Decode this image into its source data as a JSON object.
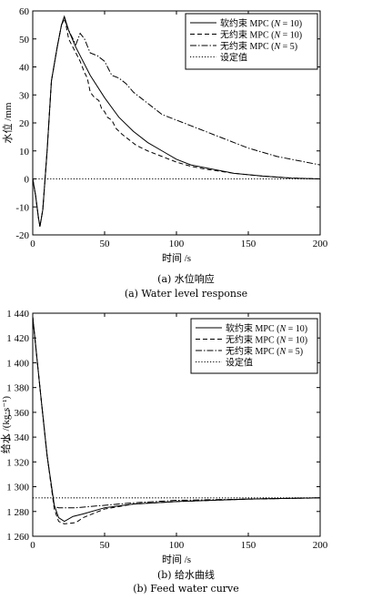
{
  "chart_data": [
    {
      "type": "line",
      "caption_cn": "(a) 水位响应",
      "caption_en": "(a) Water level response",
      "xlabel": "时间 /s",
      "ylabel": "水位 /mm",
      "xlim": [
        0,
        200
      ],
      "ylim": [
        -20,
        60
      ],
      "xticks": [
        0,
        50,
        100,
        150,
        200
      ],
      "yticks": [
        -20,
        -10,
        0,
        10,
        20,
        30,
        40,
        50,
        60
      ],
      "ytick_labels": [
        "-20",
        "-10",
        "0",
        "10",
        "20",
        "30",
        "40",
        "50",
        "60"
      ],
      "grid": false,
      "legend_position": "top-right",
      "series": [
        {
          "name": "软约束 MPC (N = 10)",
          "label_cn": "软约束",
          "label_n": "10",
          "dash": "solid",
          "points": [
            [
              0,
              0
            ],
            [
              2,
              -6
            ],
            [
              4,
              -14
            ],
            [
              5,
              -17
            ],
            [
              7,
              -11
            ],
            [
              10,
              10
            ],
            [
              13,
              35
            ],
            [
              17,
              47
            ],
            [
              20,
              55
            ],
            [
              22,
              58
            ],
            [
              25,
              53
            ],
            [
              30,
              47
            ],
            [
              40,
              37
            ],
            [
              50,
              29
            ],
            [
              60,
              22
            ],
            [
              70,
              17
            ],
            [
              80,
              13
            ],
            [
              90,
              10
            ],
            [
              100,
              7
            ],
            [
              110,
              5
            ],
            [
              120,
              4
            ],
            [
              140,
              2
            ],
            [
              160,
              1
            ],
            [
              180,
              0.3
            ],
            [
              200,
              0
            ]
          ]
        },
        {
          "name": "无约束 MPC (N = 10)",
          "label_cn": "无约束",
          "label_n": "10",
          "dash": "dashed",
          "points": [
            [
              0,
              0
            ],
            [
              2,
              -6
            ],
            [
              4,
              -14
            ],
            [
              5,
              -17
            ],
            [
              7,
              -11
            ],
            [
              10,
              10
            ],
            [
              13,
              35
            ],
            [
              17,
              47
            ],
            [
              20,
              55
            ],
            [
              22,
              58
            ],
            [
              25,
              50
            ],
            [
              30,
              45
            ],
            [
              33,
              42
            ],
            [
              36,
              38
            ],
            [
              38,
              36
            ],
            [
              40,
              31
            ],
            [
              43,
              29
            ],
            [
              46,
              28
            ],
            [
              48,
              25
            ],
            [
              50,
              24
            ],
            [
              52,
              22
            ],
            [
              55,
              21
            ],
            [
              58,
              18
            ],
            [
              62,
              16
            ],
            [
              67,
              14
            ],
            [
              72,
              12
            ],
            [
              80,
              10
            ],
            [
              90,
              8
            ],
            [
              100,
              6
            ],
            [
              110,
              4.5
            ],
            [
              120,
              3.5
            ],
            [
              140,
              2
            ],
            [
              160,
              1
            ],
            [
              180,
              0.3
            ],
            [
              200,
              0
            ]
          ]
        },
        {
          "name": "无约束 MPC (N = 5)",
          "label_cn": "无约束",
          "label_n": "5",
          "dash": "dashdot",
          "points": [
            [
              0,
              0
            ],
            [
              2,
              -6
            ],
            [
              4,
              -14
            ],
            [
              5,
              -17
            ],
            [
              7,
              -11
            ],
            [
              10,
              10
            ],
            [
              13,
              35
            ],
            [
              17,
              47
            ],
            [
              20,
              55
            ],
            [
              22,
              57
            ],
            [
              26,
              52
            ],
            [
              30,
              48
            ],
            [
              33,
              52
            ],
            [
              36,
              50
            ],
            [
              40,
              45
            ],
            [
              45,
              44
            ],
            [
              50,
              42
            ],
            [
              55,
              37
            ],
            [
              60,
              36
            ],
            [
              65,
              34
            ],
            [
              70,
              31
            ],
            [
              75,
              29
            ],
            [
              80,
              27
            ],
            [
              85,
              25
            ],
            [
              90,
              23
            ],
            [
              100,
              21
            ],
            [
              110,
              19
            ],
            [
              120,
              17
            ],
            [
              130,
              15
            ],
            [
              140,
              13
            ],
            [
              150,
              11
            ],
            [
              160,
              9.5
            ],
            [
              170,
              8
            ],
            [
              180,
              7
            ],
            [
              190,
              6
            ],
            [
              200,
              5
            ]
          ]
        },
        {
          "name": "设定值",
          "label_cn": "设定值",
          "label_n": "",
          "dash": "dotted",
          "points": [
            [
              0,
              0
            ],
            [
              200,
              0
            ]
          ]
        }
      ]
    },
    {
      "type": "line",
      "caption_cn": "(b) 给水曲线",
      "caption_en": "(b) Feed water curve",
      "xlabel": "时间 /s",
      "ylabel": "给水 /(kg·s⁻¹)",
      "xlim": [
        0,
        200
      ],
      "ylim": [
        1260,
        1440
      ],
      "xticks": [
        0,
        50,
        100,
        150,
        200
      ],
      "yticks": [
        1260,
        1280,
        1300,
        1320,
        1340,
        1360,
        1380,
        1400,
        1420,
        1440
      ],
      "ytick_labels": [
        "1 260",
        "1 280",
        "1 300",
        "1 320",
        "1 340",
        "1 360",
        "1 380",
        "1 400",
        "1 420",
        "1 440"
      ],
      "grid": false,
      "legend_position": "top-right",
      "series": [
        {
          "name": "软约束 MPC (N = 10)",
          "label_cn": "软约束",
          "label_n": "10",
          "dash": "solid",
          "points": [
            [
              0,
              1437
            ],
            [
              5,
              1380
            ],
            [
              10,
              1325
            ],
            [
              15,
              1285
            ],
            [
              18,
              1275
            ],
            [
              22,
              1272
            ],
            [
              28,
              1276
            ],
            [
              35,
              1278
            ],
            [
              50,
              1283
            ],
            [
              70,
              1286
            ],
            [
              100,
              1288
            ],
            [
              150,
              1290
            ],
            [
              200,
              1291
            ]
          ]
        },
        {
          "name": "无约束 MPC (N = 10)",
          "label_cn": "无约束",
          "label_n": "10",
          "dash": "dashed",
          "points": [
            [
              0,
              1437
            ],
            [
              5,
              1380
            ],
            [
              10,
              1325
            ],
            [
              15,
              1282
            ],
            [
              18,
              1272
            ],
            [
              22,
              1270
            ],
            [
              30,
              1271
            ],
            [
              35,
              1275
            ],
            [
              50,
              1282
            ],
            [
              70,
              1286
            ],
            [
              100,
              1288
            ],
            [
              150,
              1290
            ],
            [
              200,
              1291
            ]
          ]
        },
        {
          "name": "无约束 MPC (N = 5)",
          "label_cn": "无约束",
          "label_n": "5",
          "dash": "dashdot",
          "points": [
            [
              0,
              1437
            ],
            [
              5,
              1380
            ],
            [
              10,
              1325
            ],
            [
              15,
              1284
            ],
            [
              18,
              1283
            ],
            [
              30,
              1283
            ],
            [
              50,
              1285
            ],
            [
              70,
              1287
            ],
            [
              100,
              1289
            ],
            [
              150,
              1290
            ],
            [
              200,
              1291
            ]
          ]
        },
        {
          "name": "设定值",
          "label_cn": "设定值",
          "label_n": "",
          "dash": "dotted",
          "points": [
            [
              0,
              1291
            ],
            [
              200,
              1291
            ]
          ]
        }
      ]
    }
  ]
}
